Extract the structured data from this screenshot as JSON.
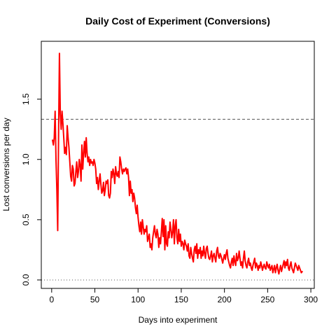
{
  "chart_data": {
    "type": "line",
    "title": "Daily Cost of Experiment (Conversions)",
    "xlabel": "Days into experiment",
    "ylabel": "Lost conversions per day",
    "xlim": [
      -12,
      304
    ],
    "ylim": [
      -0.07,
      1.98
    ],
    "x_ticks": [
      0,
      50,
      100,
      150,
      200,
      250,
      300
    ],
    "x_tick_labels": [
      "0",
      "50",
      "100",
      "150",
      "200",
      "250",
      "300"
    ],
    "y_ticks": [
      0.0,
      0.5,
      1.0,
      1.5
    ],
    "y_tick_labels": [
      "0.0",
      "0.5",
      "1.0",
      "1.5"
    ],
    "reference_lines": [
      {
        "orientation": "horizontal",
        "value": 1.333,
        "style": "dashed",
        "color": "#555555"
      },
      {
        "orientation": "horizontal",
        "value": 0.0,
        "style": "dotted",
        "color": "#555555"
      }
    ],
    "grid": false,
    "series": [
      {
        "color": "#ff0000",
        "points": [
          [
            1,
            1.16
          ],
          [
            2,
            1.12
          ],
          [
            3,
            1.18
          ],
          [
            4,
            1.4
          ],
          [
            5,
            1.0
          ],
          [
            6,
            0.75
          ],
          [
            7,
            0.41
          ],
          [
            8,
            1.2
          ],
          [
            9,
            1.88
          ],
          [
            10,
            1.38
          ],
          [
            11,
            1.25
          ],
          [
            12,
            1.4
          ],
          [
            13,
            1.3
          ],
          [
            14,
            1.18
          ],
          [
            15,
            1.05
          ],
          [
            16,
            1.1
          ],
          [
            17,
            1.04
          ],
          [
            18,
            1.28
          ],
          [
            19,
            1.18
          ],
          [
            20,
            1.1
          ],
          [
            21,
            0.98
          ],
          [
            22,
            0.86
          ],
          [
            23,
            0.82
          ],
          [
            24,
            0.95
          ],
          [
            25,
            0.92
          ],
          [
            26,
            0.78
          ],
          [
            27,
            0.8
          ],
          [
            28,
            0.9
          ],
          [
            29,
            0.98
          ],
          [
            30,
            0.85
          ],
          [
            31,
            0.9
          ],
          [
            32,
            1.0
          ],
          [
            33,
            0.95
          ],
          [
            34,
            0.82
          ],
          [
            35,
            1.12
          ],
          [
            36,
            0.92
          ],
          [
            37,
            1.05
          ],
          [
            38,
            1.15
          ],
          [
            39,
            1.02
          ],
          [
            40,
            1.18
          ],
          [
            41,
            1.05
          ],
          [
            42,
            0.98
          ],
          [
            43,
            1.02
          ],
          [
            44,
            0.95
          ],
          [
            45,
            1.0
          ],
          [
            46,
            0.97
          ],
          [
            47,
            0.98
          ],
          [
            48,
            0.95
          ],
          [
            49,
            1.0
          ],
          [
            50,
            0.97
          ],
          [
            51,
            0.92
          ],
          [
            52,
            0.8
          ],
          [
            53,
            0.85
          ],
          [
            54,
            0.75
          ],
          [
            55,
            0.82
          ],
          [
            56,
            0.88
          ],
          [
            57,
            0.79
          ],
          [
            58,
            0.72
          ],
          [
            59,
            0.74
          ],
          [
            60,
            0.81
          ],
          [
            61,
            0.7
          ],
          [
            62,
            0.75
          ],
          [
            63,
            0.82
          ],
          [
            64,
            0.8
          ],
          [
            65,
            0.83
          ],
          [
            66,
            0.7
          ],
          [
            67,
            0.68
          ],
          [
            68,
            0.72
          ],
          [
            69,
            0.9
          ],
          [
            70,
            0.85
          ],
          [
            71,
            0.92
          ],
          [
            72,
            0.88
          ],
          [
            73,
            0.8
          ],
          [
            74,
            0.94
          ],
          [
            75,
            0.88
          ],
          [
            76,
            0.86
          ],
          [
            77,
            0.9
          ],
          [
            78,
            0.85
          ],
          [
            79,
            1.02
          ],
          [
            80,
            0.98
          ],
          [
            81,
            0.92
          ],
          [
            82,
            0.88
          ],
          [
            83,
            0.92
          ],
          [
            84,
            0.9
          ],
          [
            85,
            0.92
          ],
          [
            86,
            0.93
          ],
          [
            87,
            0.88
          ],
          [
            88,
            0.92
          ],
          [
            89,
            0.85
          ],
          [
            90,
            0.7
          ],
          [
            91,
            0.82
          ],
          [
            92,
            0.72
          ],
          [
            93,
            0.75
          ],
          [
            94,
            0.65
          ],
          [
            95,
            0.72
          ],
          [
            96,
            0.68
          ],
          [
            97,
            0.6
          ],
          [
            98,
            0.55
          ],
          [
            99,
            0.62
          ],
          [
            100,
            0.52
          ],
          [
            101,
            0.45
          ],
          [
            102,
            0.4
          ],
          [
            103,
            0.48
          ],
          [
            104,
            0.38
          ],
          [
            105,
            0.5
          ],
          [
            106,
            0.44
          ],
          [
            107,
            0.38
          ],
          [
            108,
            0.42
          ],
          [
            109,
            0.4
          ],
          [
            110,
            0.45
          ],
          [
            111,
            0.32
          ],
          [
            112,
            0.35
          ],
          [
            113,
            0.38
          ],
          [
            114,
            0.27
          ],
          [
            115,
            0.3
          ],
          [
            116,
            0.25
          ],
          [
            117,
            0.35
          ],
          [
            118,
            0.4
          ],
          [
            119,
            0.45
          ],
          [
            120,
            0.38
          ],
          [
            121,
            0.35
          ],
          [
            122,
            0.42
          ],
          [
            123,
            0.38
          ],
          [
            124,
            0.27
          ],
          [
            125,
            0.35
          ],
          [
            126,
            0.3
          ],
          [
            127,
            0.4
          ],
          [
            128,
            0.51
          ],
          [
            129,
            0.36
          ],
          [
            130,
            0.5
          ],
          [
            131,
            0.25
          ],
          [
            132,
            0.45
          ],
          [
            133,
            0.3
          ],
          [
            134,
            0.28
          ],
          [
            135,
            0.4
          ],
          [
            136,
            0.35
          ],
          [
            137,
            0.48
          ],
          [
            138,
            0.42
          ],
          [
            139,
            0.35
          ],
          [
            140,
            0.4
          ],
          [
            141,
            0.5
          ],
          [
            142,
            0.3
          ],
          [
            143,
            0.45
          ],
          [
            144,
            0.5
          ],
          [
            145,
            0.35
          ],
          [
            146,
            0.3
          ],
          [
            147,
            0.42
          ],
          [
            148,
            0.32
          ],
          [
            149,
            0.38
          ],
          [
            150,
            0.28
          ],
          [
            151,
            0.32
          ],
          [
            152,
            0.3
          ],
          [
            153,
            0.25
          ],
          [
            154,
            0.33
          ],
          [
            155,
            0.3
          ],
          [
            156,
            0.28
          ],
          [
            157,
            0.24
          ],
          [
            158,
            0.3
          ],
          [
            159,
            0.2
          ],
          [
            160,
            0.18
          ],
          [
            161,
            0.27
          ],
          [
            162,
            0.22
          ],
          [
            163,
            0.18
          ],
          [
            164,
            0.15
          ],
          [
            165,
            0.25
          ],
          [
            166,
            0.28
          ],
          [
            167,
            0.22
          ],
          [
            168,
            0.3
          ],
          [
            169,
            0.18
          ],
          [
            170,
            0.25
          ],
          [
            171,
            0.22
          ],
          [
            172,
            0.27
          ],
          [
            173,
            0.18
          ],
          [
            174,
            0.24
          ],
          [
            175,
            0.2
          ],
          [
            176,
            0.28
          ],
          [
            177,
            0.22
          ],
          [
            178,
            0.18
          ],
          [
            179,
            0.26
          ],
          [
            180,
            0.28
          ],
          [
            181,
            0.22
          ],
          [
            182,
            0.18
          ],
          [
            183,
            0.17
          ],
          [
            184,
            0.2
          ],
          [
            185,
            0.24
          ],
          [
            186,
            0.15
          ],
          [
            187,
            0.2
          ],
          [
            188,
            0.22
          ],
          [
            189,
            0.18
          ],
          [
            190,
            0.15
          ],
          [
            191,
            0.24
          ],
          [
            192,
            0.27
          ],
          [
            193,
            0.2
          ],
          [
            194,
            0.18
          ],
          [
            195,
            0.22
          ],
          [
            196,
            0.2
          ],
          [
            197,
            0.17
          ],
          [
            198,
            0.14
          ],
          [
            199,
            0.18
          ],
          [
            200,
            0.21
          ],
          [
            201,
            0.17
          ],
          [
            202,
            0.22
          ],
          [
            203,
            0.25
          ],
          [
            204,
            0.18
          ],
          [
            205,
            0.15
          ],
          [
            206,
            0.12
          ],
          [
            207,
            0.1
          ],
          [
            208,
            0.15
          ],
          [
            209,
            0.18
          ],
          [
            210,
            0.12
          ],
          [
            211,
            0.2
          ],
          [
            212,
            0.15
          ],
          [
            213,
            0.12
          ],
          [
            214,
            0.22
          ],
          [
            215,
            0.16
          ],
          [
            216,
            0.18
          ],
          [
            217,
            0.24
          ],
          [
            218,
            0.18
          ],
          [
            219,
            0.12
          ],
          [
            220,
            0.15
          ],
          [
            221,
            0.1
          ],
          [
            222,
            0.18
          ],
          [
            223,
            0.24
          ],
          [
            224,
            0.16
          ],
          [
            225,
            0.12
          ],
          [
            226,
            0.1
          ],
          [
            227,
            0.15
          ],
          [
            228,
            0.18
          ],
          [
            229,
            0.12
          ],
          [
            230,
            0.14
          ],
          [
            231,
            0.1
          ],
          [
            232,
            0.08
          ],
          [
            233,
            0.12
          ],
          [
            234,
            0.15
          ],
          [
            235,
            0.18
          ],
          [
            236,
            0.1
          ],
          [
            237,
            0.14
          ],
          [
            238,
            0.12
          ],
          [
            239,
            0.08
          ],
          [
            240,
            0.12
          ],
          [
            241,
            0.1
          ],
          [
            242,
            0.15
          ],
          [
            243,
            0.12
          ],
          [
            244,
            0.08
          ],
          [
            245,
            0.11
          ],
          [
            246,
            0.13
          ],
          [
            247,
            0.1
          ],
          [
            248,
            0.09
          ],
          [
            249,
            0.15
          ],
          [
            250,
            0.12
          ],
          [
            251,
            0.1
          ],
          [
            252,
            0.13
          ],
          [
            253,
            0.08
          ],
          [
            254,
            0.1
          ],
          [
            255,
            0.12
          ],
          [
            256,
            0.06
          ],
          [
            257,
            0.09
          ],
          [
            258,
            0.12
          ],
          [
            259,
            0.06
          ],
          [
            260,
            0.1
          ],
          [
            261,
            0.13
          ],
          [
            262,
            0.08
          ],
          [
            263,
            0.05
          ],
          [
            264,
            0.09
          ],
          [
            265,
            0.12
          ],
          [
            266,
            0.07
          ],
          [
            267,
            0.1
          ],
          [
            268,
            0.13
          ],
          [
            269,
            0.16
          ],
          [
            270,
            0.1
          ],
          [
            271,
            0.15
          ],
          [
            272,
            0.12
          ],
          [
            273,
            0.17
          ],
          [
            274,
            0.1
          ],
          [
            275,
            0.08
          ],
          [
            276,
            0.12
          ],
          [
            277,
            0.15
          ],
          [
            278,
            0.1
          ],
          [
            279,
            0.08
          ],
          [
            280,
            0.06
          ],
          [
            281,
            0.1
          ],
          [
            282,
            0.14
          ],
          [
            283,
            0.12
          ],
          [
            284,
            0.1
          ],
          [
            285,
            0.08
          ],
          [
            286,
            0.12
          ],
          [
            287,
            0.1
          ],
          [
            288,
            0.08
          ],
          [
            289,
            0.06
          ],
          [
            290,
            0.07
          ]
        ]
      }
    ]
  }
}
